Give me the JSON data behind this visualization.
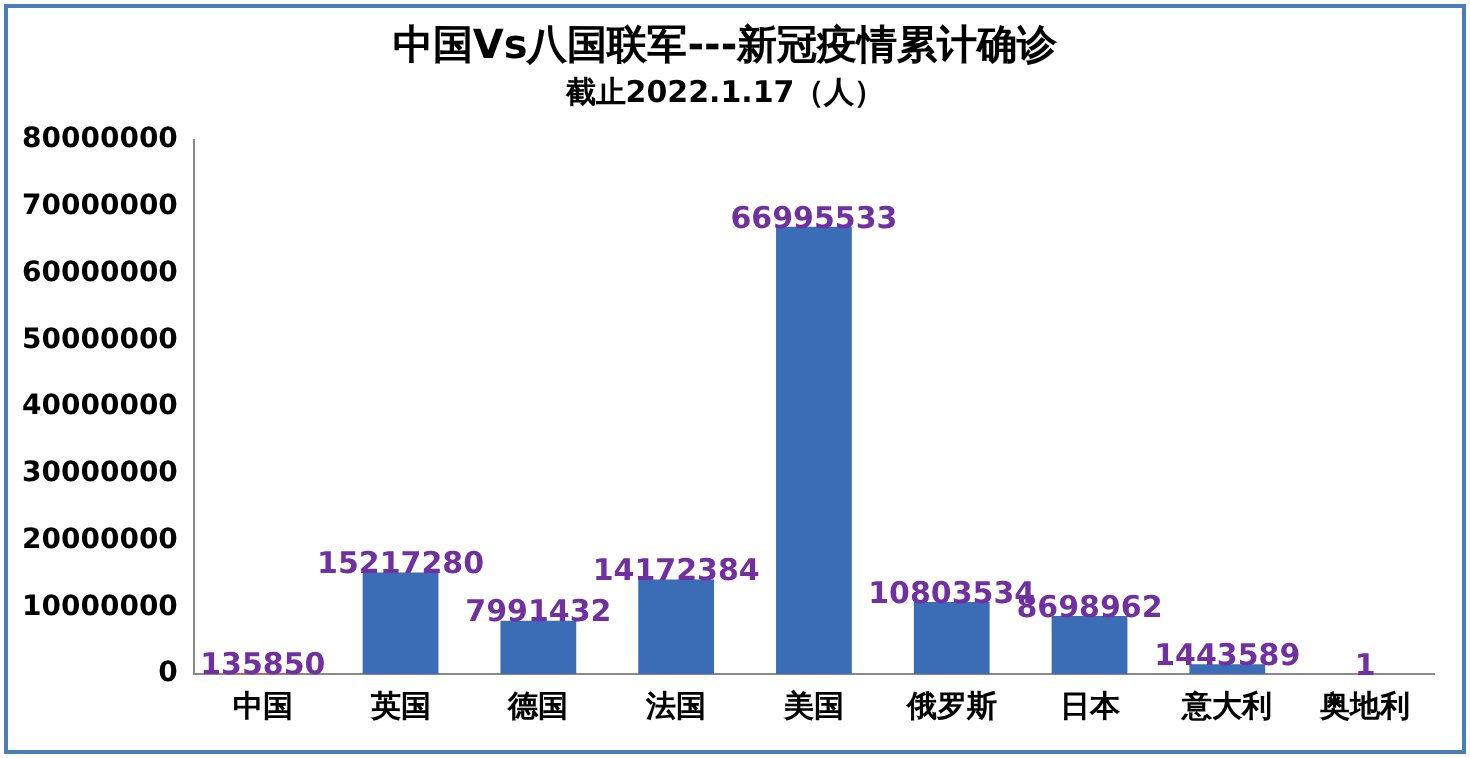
{
  "chart_data": {
    "type": "bar",
    "title": "中国Vs八国联军---新冠疫情累计确诊",
    "subtitle": "截止2022.1.17（人）",
    "categories": [
      "中国",
      "英国",
      "德国",
      "法国",
      "美国",
      "俄罗斯",
      "日本",
      "意大利",
      "奥地利"
    ],
    "values": [
      135850,
      15217280,
      7991432,
      14172384,
      66995533,
      10803534,
      8698962,
      1443589,
      1
    ],
    "colors": [
      "#d9534f",
      "#3a6db5",
      "#3a6db5",
      "#3a6db5",
      "#3a6db5",
      "#3a6db5",
      "#3a6db5",
      "#3a6db5",
      "#3a6db5"
    ],
    "ylim": [
      0,
      80000000
    ],
    "yticks": [
      0,
      10000000,
      20000000,
      30000000,
      40000000,
      50000000,
      60000000,
      70000000,
      80000000
    ],
    "grid": false,
    "legend": false,
    "data_labels": true
  }
}
